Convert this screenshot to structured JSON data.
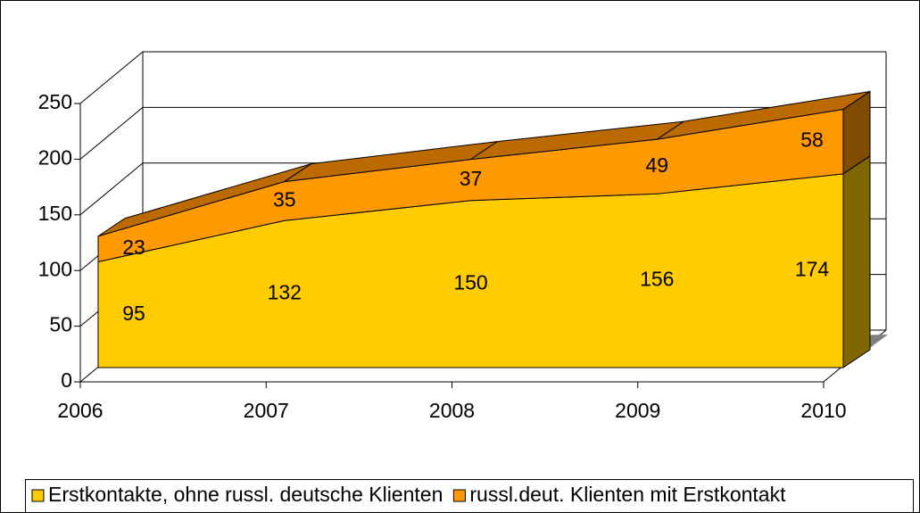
{
  "chart_data": {
    "type": "area3d_stacked",
    "x": [
      2006,
      2007,
      2008,
      2009,
      2010
    ],
    "series": [
      {
        "name": "Erstkontakte, ohne russl. deutsche Klienten",
        "color": "#ffcc00",
        "side_color": "#806600",
        "values": [
          95,
          132,
          150,
          156,
          174
        ]
      },
      {
        "name": "russl.deut. Klienten mit Erstkontakt",
        "color": "#ff9900",
        "top_color": "#bb6a00",
        "side_color": "#804c00",
        "values": [
          23,
          35,
          37,
          49,
          58
        ]
      }
    ],
    "ylim": [
      0,
      250
    ],
    "yticks": [
      0,
      50,
      100,
      150,
      200,
      250
    ],
    "floor_color": "#808080",
    "grid": true,
    "legend": "bottom"
  }
}
